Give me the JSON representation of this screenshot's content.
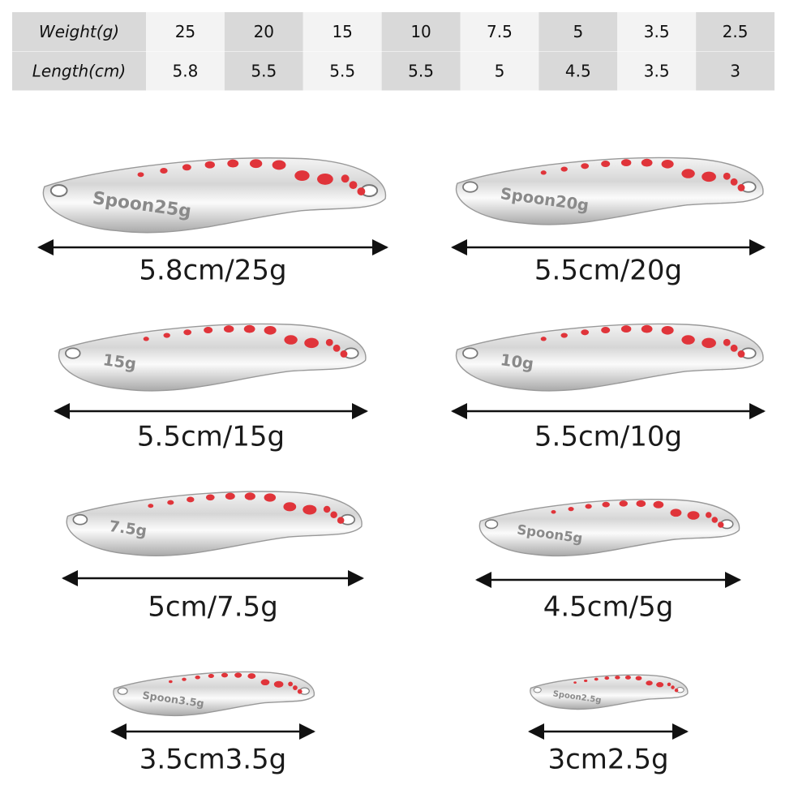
{
  "table": {
    "header": [
      "Weight(g)",
      "25",
      "20",
      "15",
      "10",
      "7.5",
      "5",
      "3.5",
      "2.5"
    ],
    "rows": [
      [
        "Length(cm)",
        "5.8",
        "5.5",
        "5.5",
        "5.5",
        "5",
        "4.5",
        "3.5",
        "3"
      ]
    ]
  },
  "items": [
    {
      "engraving": "Spoon25g",
      "caption": "5.8cm/25g"
    },
    {
      "engraving": "Spoon20g",
      "caption": "5.5cm/20g"
    },
    {
      "engraving": "15g",
      "caption": "5.5cm/15g"
    },
    {
      "engraving": "10g",
      "caption": "5.5cm/10g"
    },
    {
      "engraving": "7.5g",
      "caption": "5cm/7.5g"
    },
    {
      "engraving": "Spoon5g",
      "caption": "4.5cm/5g"
    },
    {
      "engraving": "Spoon3.5g",
      "caption": "3.5cm3.5g"
    },
    {
      "engraving": "Spoon2.5g",
      "caption": "3cm2.5g"
    }
  ]
}
